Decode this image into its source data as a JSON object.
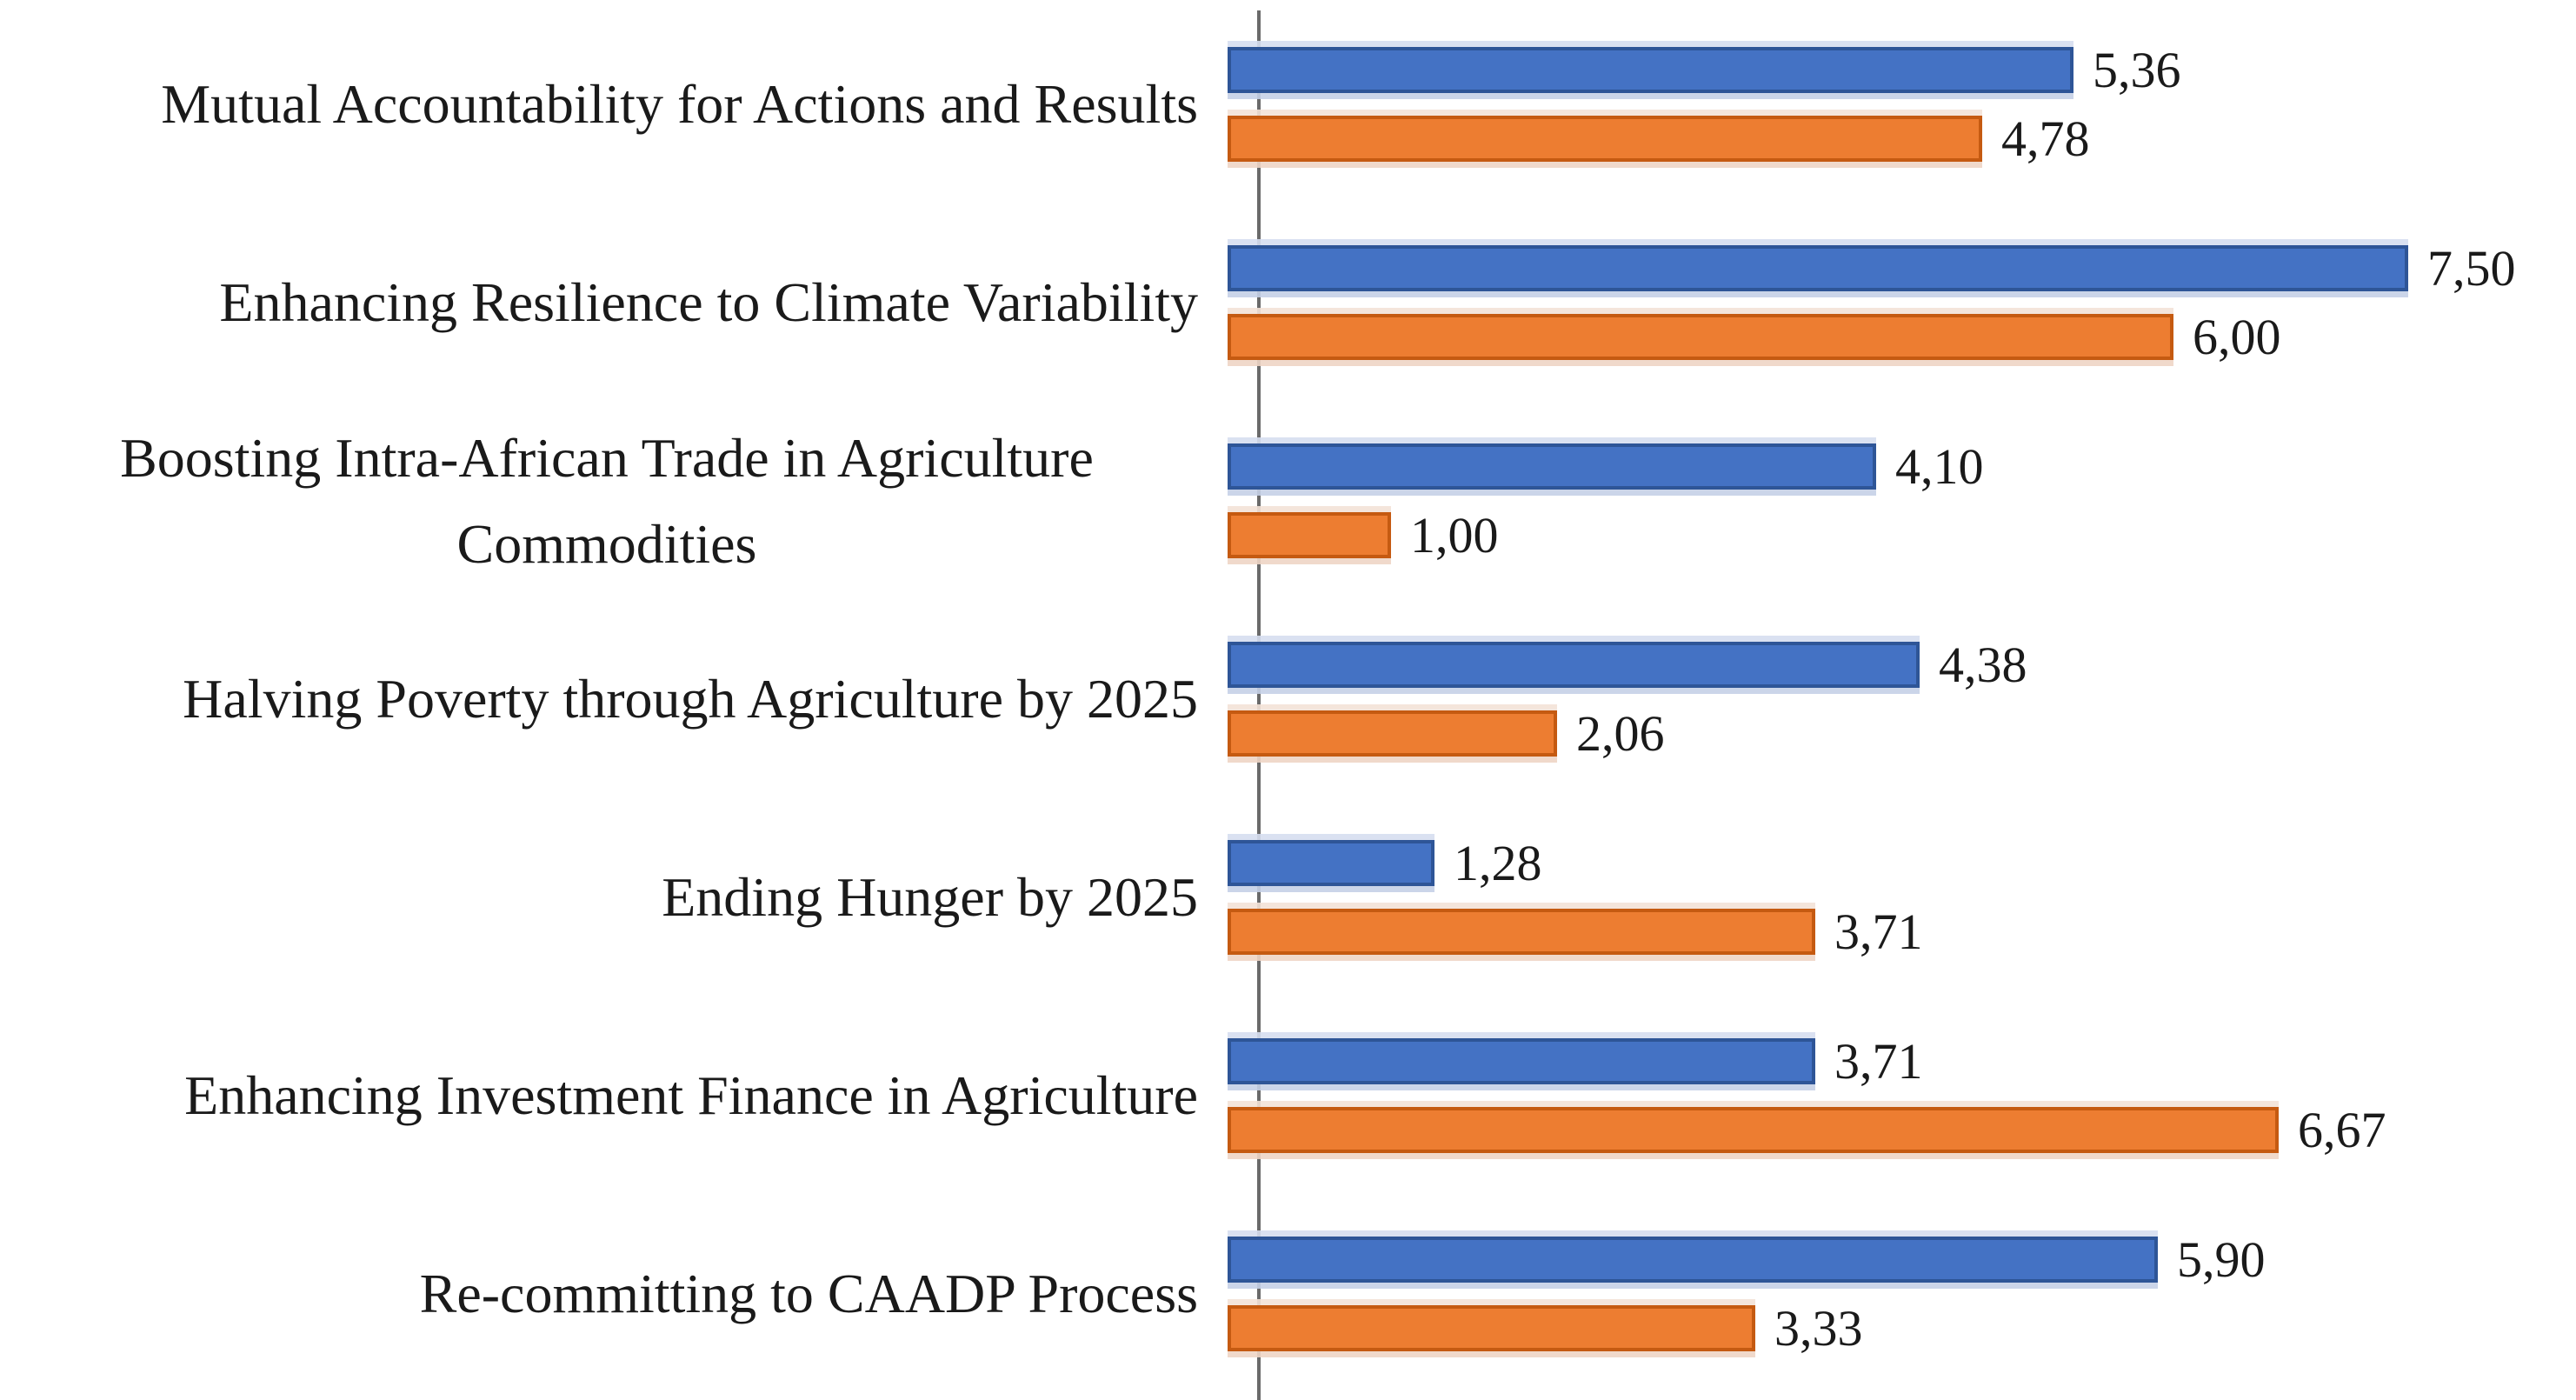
{
  "chart_data": {
    "type": "bar",
    "orientation": "horizontal",
    "title": "",
    "xlabel": "",
    "ylabel": "",
    "grid": false,
    "legend_visible": false,
    "xlim": [
      0,
      8.3
    ],
    "decimal_separator": ",",
    "categories": [
      "Mutual Accountability for Actions and Results",
      "Enhancing Resilience to Climate Variability",
      "Boosting Intra-African Trade in Agriculture Commodities",
      "Halving Poverty through Agriculture by 2025",
      "Ending Hunger by 2025",
      "Enhancing Investment Finance in Agriculture",
      "Re-committing to CAADP Process"
    ],
    "series": [
      {
        "key": "blue",
        "color": "#4472C4",
        "border_color": "#2E5597",
        "values": [
          5.36,
          7.5,
          4.1,
          4.38,
          1.28,
          3.71,
          5.9
        ],
        "value_labels": [
          "5,36",
          "7,50",
          "4,10",
          "4,38",
          "1,28",
          "3,71",
          "5,90"
        ]
      },
      {
        "key": "orange",
        "color": "#ED7D31",
        "border_color": "#C55A11",
        "values": [
          4.78,
          6.0,
          1.0,
          2.06,
          3.71,
          6.67,
          3.33
        ],
        "value_labels": [
          "4,78",
          "6,00",
          "1,00",
          "2,06",
          "3,71",
          "6,67",
          "3,33"
        ]
      }
    ]
  },
  "layout": {
    "axis_color": "#6a6a6a"
  }
}
